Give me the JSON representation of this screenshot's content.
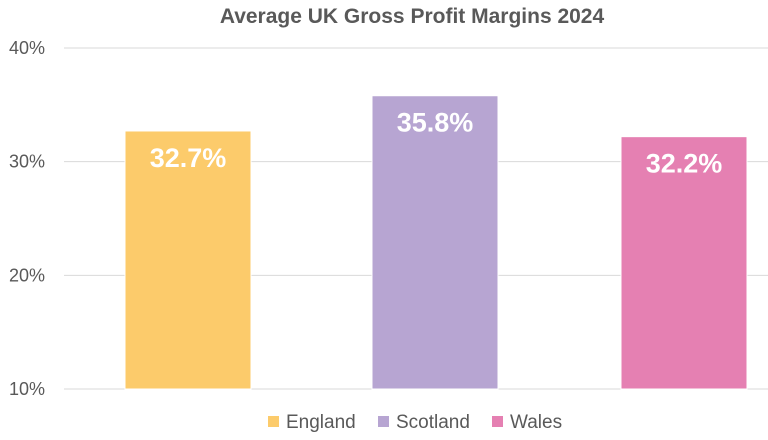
{
  "chart_data": {
    "type": "bar",
    "title": "Average UK Gross Profit Margins 2024",
    "xlabel": "",
    "ylabel": "",
    "categories": [
      "England",
      "Scotland",
      "Wales"
    ],
    "values": [
      32.7,
      35.8,
      32.2
    ],
    "data_labels": [
      "32.7%",
      "35.8%",
      "32.2%"
    ],
    "colors": [
      "#FCCB6B",
      "#B7A5D2",
      "#E580B2"
    ],
    "ylim": [
      10,
      40
    ],
    "yticks": [
      10,
      20,
      30,
      40
    ],
    "ytick_labels": [
      "10%",
      "20%",
      "30%",
      "40%"
    ],
    "grid": true,
    "legend_position": "bottom",
    "legend": [
      "England",
      "Scotland",
      "Wales"
    ]
  }
}
